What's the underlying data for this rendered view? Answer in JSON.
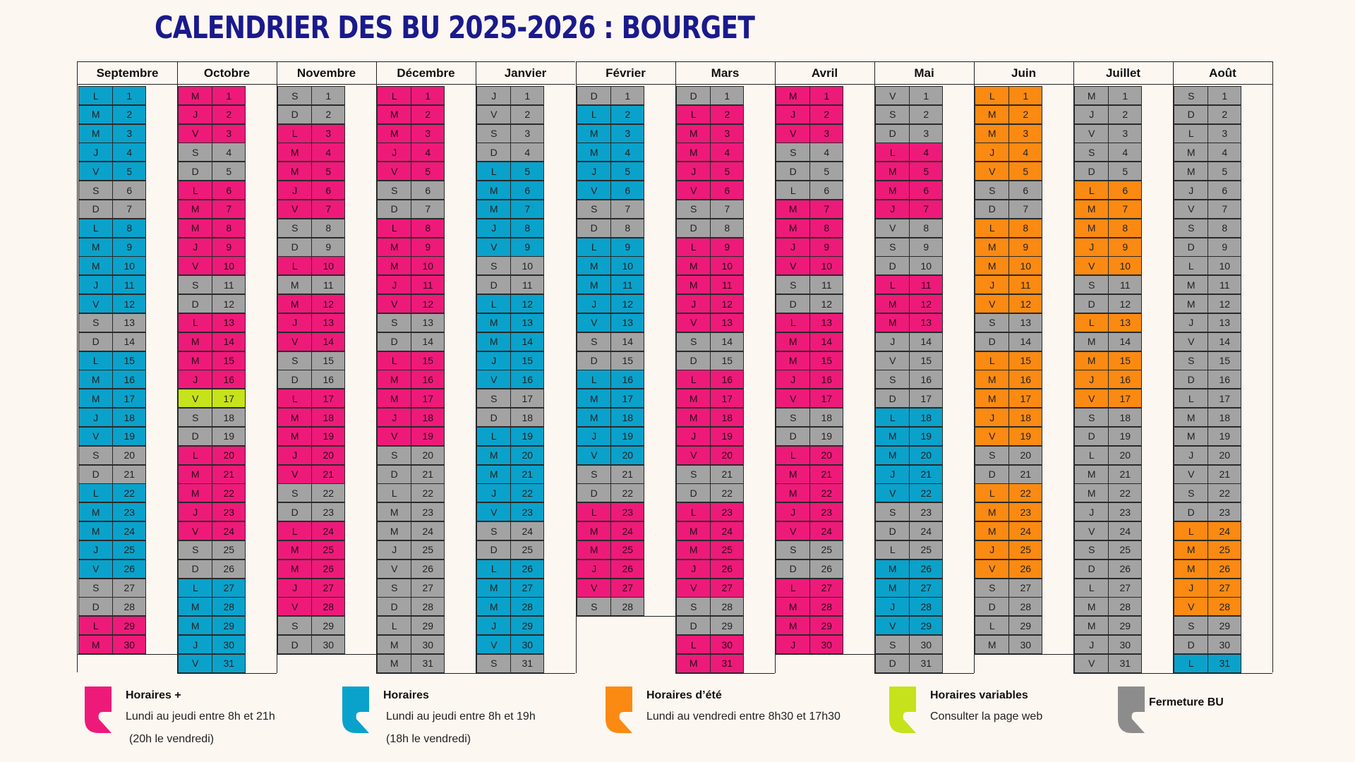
{
  "title": "CALENDRIER DES BU 2025-2026 : BOURGET",
  "colors": {
    "P": "#ee1a7a",
    "B": "#0aa2cb",
    "G": "#a3a3a3",
    "O": "#fb8a12",
    "Y": "#c6e21a"
  },
  "months": [
    {
      "name": "Septembre",
      "weekdays": [
        "L",
        "M",
        "M",
        "J",
        "V",
        "S",
        "D",
        "L",
        "M",
        "M",
        "J",
        "V",
        "S",
        "D",
        "L",
        "M",
        "M",
        "J",
        "V",
        "S",
        "D",
        "L",
        "M",
        "M",
        "J",
        "V",
        "S",
        "D",
        "L",
        "M"
      ],
      "colors": "BBBBBGGBBBBBGGBBBBBGGBBBBBGGPP"
    },
    {
      "name": "Octobre",
      "weekdays": [
        "M",
        "J",
        "V",
        "S",
        "D",
        "L",
        "M",
        "M",
        "J",
        "V",
        "S",
        "D",
        "L",
        "M",
        "M",
        "J",
        "V",
        "S",
        "D",
        "L",
        "M",
        "M",
        "J",
        "V",
        "S",
        "D",
        "L",
        "M",
        "M",
        "J",
        "V"
      ],
      "colors": "PPPGGPPPPPGGPPPPYGGPPPPPGGBBBBB"
    },
    {
      "name": "Novembre",
      "weekdays": [
        "S",
        "D",
        "L",
        "M",
        "M",
        "J",
        "V",
        "S",
        "D",
        "L",
        "M",
        "M",
        "J",
        "V",
        "S",
        "D",
        "L",
        "M",
        "M",
        "J",
        "V",
        "S",
        "D",
        "L",
        "M",
        "M",
        "J",
        "V",
        "S",
        "D"
      ],
      "colors": "GGPPPPPGGPGPPPGGPPPPPGGPPPPPGG"
    },
    {
      "name": "Décembre",
      "weekdays": [
        "L",
        "M",
        "M",
        "J",
        "V",
        "S",
        "D",
        "L",
        "M",
        "M",
        "J",
        "V",
        "S",
        "D",
        "L",
        "M",
        "M",
        "J",
        "V",
        "S",
        "D",
        "L",
        "M",
        "M",
        "J",
        "V",
        "S",
        "D",
        "L",
        "M",
        "M"
      ],
      "colors": "PPPPPGGPPPPPGGPPPPPGGGGGGGGGGGG"
    },
    {
      "name": "Janvier",
      "weekdays": [
        "J",
        "V",
        "S",
        "D",
        "L",
        "M",
        "M",
        "J",
        "V",
        "S",
        "D",
        "L",
        "M",
        "M",
        "J",
        "V",
        "S",
        "D",
        "L",
        "M",
        "M",
        "J",
        "V",
        "S",
        "D",
        "L",
        "M",
        "M",
        "J",
        "V",
        "S"
      ],
      "colors": "GGGGBBBBBGGBBBBBGGBBBBBGGBBBBBG"
    },
    {
      "name": "Février",
      "weekdays": [
        "D",
        "L",
        "M",
        "M",
        "J",
        "V",
        "S",
        "D",
        "L",
        "M",
        "M",
        "J",
        "V",
        "S",
        "D",
        "L",
        "M",
        "M",
        "J",
        "V",
        "S",
        "D",
        "L",
        "M",
        "M",
        "J",
        "V",
        "S"
      ],
      "colors": "GBBBBBGGBBBBBGGBBBBBGGPPPPPG"
    },
    {
      "name": "Mars",
      "weekdays": [
        "D",
        "L",
        "M",
        "M",
        "J",
        "V",
        "S",
        "D",
        "L",
        "M",
        "M",
        "J",
        "V",
        "S",
        "D",
        "L",
        "M",
        "M",
        "J",
        "V",
        "S",
        "D",
        "L",
        "M",
        "M",
        "J",
        "V",
        "S",
        "D",
        "L",
        "M"
      ],
      "colors": "GPPPPPGGPPPPPGGPPPPPGGPPPPPGGPP"
    },
    {
      "name": "Avril",
      "weekdays": [
        "M",
        "J",
        "V",
        "S",
        "D",
        "L",
        "M",
        "M",
        "J",
        "V",
        "S",
        "D",
        "L",
        "M",
        "M",
        "J",
        "V",
        "S",
        "D",
        "L",
        "M",
        "M",
        "J",
        "V",
        "S",
        "D",
        "L",
        "M",
        "M",
        "J"
      ],
      "colors": "PPPGGGPPPPGGPPPPPGGPPPPPGGPPPP"
    },
    {
      "name": "Mai",
      "weekdays": [
        "V",
        "S",
        "D",
        "L",
        "M",
        "M",
        "J",
        "V",
        "S",
        "D",
        "L",
        "M",
        "M",
        "J",
        "V",
        "S",
        "D",
        "L",
        "M",
        "M",
        "J",
        "V",
        "S",
        "D",
        "L",
        "M",
        "M",
        "J",
        "V",
        "S",
        "D"
      ],
      "colors": "GGGPPPPGGGPPPGGGGBBBBBGGGBBBBGG"
    },
    {
      "name": "Juin",
      "weekdays": [
        "L",
        "M",
        "M",
        "J",
        "V",
        "S",
        "D",
        "L",
        "M",
        "M",
        "J",
        "V",
        "S",
        "D",
        "L",
        "M",
        "M",
        "J",
        "V",
        "S",
        "D",
        "L",
        "M",
        "M",
        "J",
        "V",
        "S",
        "D",
        "L",
        "M"
      ],
      "colors": "OOOOOGGOOOOOGGOOOOOGGOOOOOGGGG"
    },
    {
      "name": "Juillet",
      "weekdays": [
        "M",
        "J",
        "V",
        "S",
        "D",
        "L",
        "M",
        "M",
        "J",
        "V",
        "S",
        "D",
        "L",
        "M",
        "M",
        "J",
        "V",
        "S",
        "D",
        "L",
        "M",
        "M",
        "J",
        "V",
        "S",
        "D",
        "L",
        "M",
        "M",
        "J",
        "V"
      ],
      "colors": "GGGGGOOOOOGGOGOOOGGGGGGGGGGGGGG"
    },
    {
      "name": "Août",
      "weekdays": [
        "S",
        "D",
        "L",
        "M",
        "M",
        "J",
        "V",
        "S",
        "D",
        "L",
        "M",
        "M",
        "J",
        "V",
        "S",
        "D",
        "L",
        "M",
        "M",
        "J",
        "V",
        "S",
        "D",
        "L",
        "M",
        "M",
        "J",
        "V",
        "S",
        "D",
        "L"
      ],
      "colors": "GGGGGGGGGGGGGGGGGGGGGGGOOOOOGGB"
    }
  ],
  "legend": [
    {
      "color": "#ee1a7a",
      "icon": "pink-bracket-icon",
      "title": "Horaires  +",
      "lines": [
        "Lundi au jeudi entre 8h et 21h",
        "(20h le vendredi)"
      ]
    },
    {
      "color": "#0aa2cb",
      "icon": "blue-bracket-icon",
      "title": "Horaires",
      "lines": [
        "Lundi au jeudi entre 8h et 19h",
        "(18h le vendredi)"
      ]
    },
    {
      "color": "#fb8a12",
      "icon": "orange-bracket-icon",
      "title": "Horaires d’été",
      "lines": [
        "Lundi au vendredi entre  8h30 et 17h30"
      ]
    },
    {
      "color": "#c6e21a",
      "icon": "lime-bracket-icon",
      "title": "Horaires variables",
      "lines": [
        "Consulter la page web"
      ]
    },
    {
      "color": "#8c8c8c",
      "icon": "gray-bracket-icon",
      "title": "Fermeture BU",
      "lines": []
    }
  ]
}
